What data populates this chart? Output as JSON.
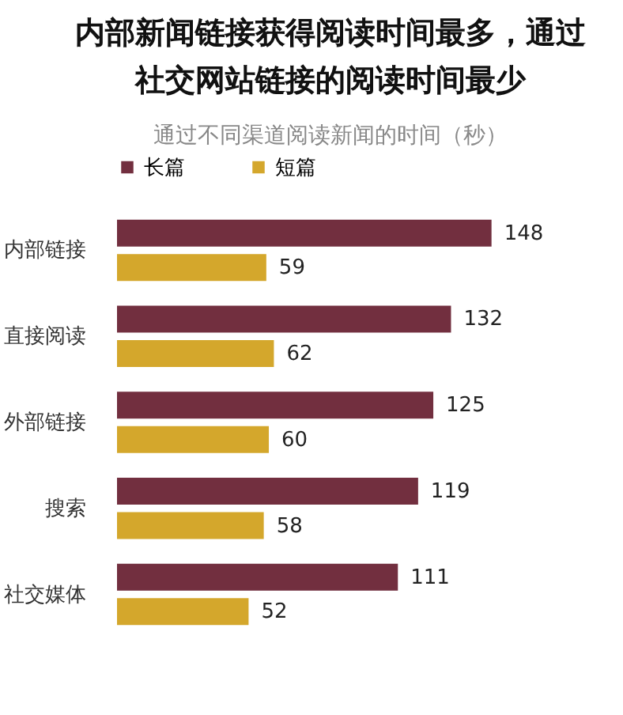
{
  "chart_data": {
    "type": "bar",
    "orientation": "horizontal",
    "title": "内部新闻链接获得阅读时间最多，通过社交网站链接的阅读时间最少",
    "subtitle": "通过不同渠道阅读新闻的时间（秒）",
    "categories": [
      "内部链接",
      "直接阅读",
      "外部链接",
      "搜索",
      "社交媒体"
    ],
    "series": [
      {
        "name": "长篇",
        "color": "#722f3f",
        "values": [
          148,
          132,
          125,
          119,
          111
        ]
      },
      {
        "name": "短篇",
        "color": "#d4a72c",
        "values": [
          59,
          62,
          60,
          58,
          52
        ]
      }
    ],
    "tick_labels": "y",
    "data_labels": true,
    "legend": "top"
  }
}
